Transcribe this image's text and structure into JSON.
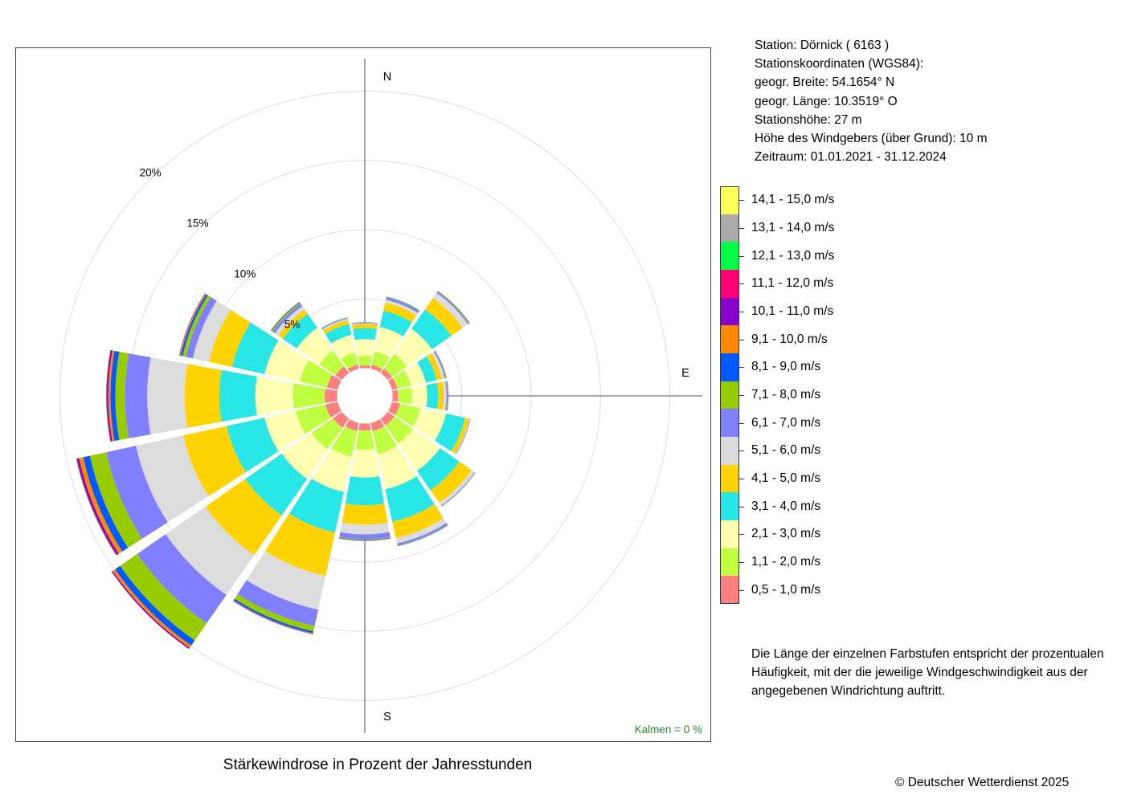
{
  "header": {
    "station": "Station:  Dörnick  ( 6163 )",
    "coords_title": "Stationskoordinaten (WGS84):",
    "lat": "geogr. Breite: 54.1654° N",
    "lon": "geogr. Länge: 10.3519° O",
    "elevation": "Stationshöhe: 27 m",
    "anemometer": "Höhe des Windgebers (über Grund): 10 m",
    "period": "Zeitraum: 01.01.2021 - 31.12.2024"
  },
  "description": "Die Länge der einzelnen Farbstufen entspricht der prozentualen Häufigkeit, mit der die jeweilige Windgeschwindigkeit aus der angegebenen Windrichtung auftritt.",
  "copyright": "© Deutscher Wetterdienst  2025",
  "chart_data": {
    "type": "wind_rose",
    "title": "Stärkewindrose in Prozent der Jahresstunden",
    "calm_label": "Kalmen  =  0 %",
    "directions": [
      "N",
      "NNE",
      "NE",
      "ENE",
      "E",
      "ESE",
      "SE",
      "SSE",
      "S",
      "SSW",
      "SW",
      "WSW",
      "W",
      "WNW",
      "NW",
      "NNW"
    ],
    "compass_labels": [
      "N",
      "E",
      "S"
    ],
    "radial_ticks": [
      5,
      10,
      15,
      20
    ],
    "radial_tick_labels": [
      "5%",
      "10%",
      "15%",
      "20%"
    ],
    "radial_max": 22,
    "calm_offset": 2,
    "classes": [
      {
        "label": "0,5 - 1,0 m/s",
        "color": "#ff7f7f"
      },
      {
        "label": "1,1 - 2,0 m/s",
        "color": "#bfff3f"
      },
      {
        "label": "2,1 - 3,0 m/s",
        "color": "#ffffb2"
      },
      {
        "label": "3,1 - 4,0 m/s",
        "color": "#28e6e6"
      },
      {
        "label": "4,1 - 5,0 m/s",
        "color": "#ffd200"
      },
      {
        "label": "5,1 - 6,0 m/s",
        "color": "#dcdcdc"
      },
      {
        "label": "6,1 - 7,0 m/s",
        "color": "#7f7fff"
      },
      {
        "label": "7,1 - 8,0 m/s",
        "color": "#99cc00"
      },
      {
        "label": "8,1 - 9,0 m/s",
        "color": "#005aff"
      },
      {
        "label": "9,1 - 10,0 m/s",
        "color": "#ff8800"
      },
      {
        "label": "10,1 - 11,0 m/s",
        "color": "#8800cc"
      },
      {
        "label": "11,1 - 12,0 m/s",
        "color": "#ff0077"
      },
      {
        "label": "12,1 - 13,0 m/s",
        "color": "#00ff44"
      },
      {
        "label": "13,1 - 14,0 m/s",
        "color": "#aaaaaa"
      },
      {
        "label": "14,1 - 15,0 m/s",
        "color": "#ffff55"
      }
    ],
    "values": [
      [
        0.2,
        0.7,
        1.2,
        0.8,
        0.3,
        0.05,
        0.05,
        0.02,
        0.01,
        0,
        0,
        0,
        0,
        0,
        0
      ],
      [
        0.3,
        1.0,
        1.8,
        1.2,
        0.6,
        0.2,
        0.15,
        0.05,
        0.03,
        0,
        0,
        0,
        0,
        0,
        0
      ],
      [
        0.4,
        1.3,
        2.2,
        1.7,
        1.0,
        0.45,
        0.08,
        0.05,
        0.03,
        0.02,
        0,
        0,
        0,
        0,
        0
      ],
      [
        0.4,
        1.0,
        1.1,
        0.8,
        0.4,
        0.2,
        0.08,
        0.04,
        0.02,
        0.01,
        0,
        0,
        0,
        0,
        0
      ],
      [
        0.4,
        1.0,
        1.1,
        0.8,
        0.4,
        0.2,
        0.08,
        0.04,
        0.02,
        0.01,
        0,
        0,
        0,
        0,
        0
      ],
      [
        0.6,
        1.5,
        1.9,
        1.4,
        0.3,
        0.05,
        0.03,
        0.02,
        0.01,
        0,
        0,
        0,
        0,
        0,
        0
      ],
      [
        0.6,
        1.6,
        2.4,
        1.7,
        1.1,
        0.25,
        0.05,
        0.02,
        0.01,
        0,
        0,
        0,
        0,
        0,
        0
      ],
      [
        0.6,
        1.7,
        2.6,
        2.4,
        1.2,
        0.4,
        0.15,
        0.04,
        0.02,
        0,
        0,
        0,
        0,
        0,
        0
      ],
      [
        0.5,
        1.4,
        2.0,
        2.0,
        1.4,
        0.7,
        0.35,
        0.05,
        0.05,
        0.03,
        0,
        0,
        0,
        0,
        0
      ],
      [
        0.6,
        1.9,
        2.6,
        3.0,
        3.2,
        2.5,
        1.2,
        0.4,
        0.15,
        0.05,
        0.02,
        0,
        0,
        0,
        0
      ],
      [
        0.8,
        1.9,
        2.6,
        3.2,
        3.5,
        3.5,
        2.5,
        1.5,
        0.45,
        0.2,
        0.1,
        0,
        0,
        0,
        0
      ],
      [
        0.9,
        2.2,
        2.3,
        2.8,
        3.2,
        3.5,
        2.2,
        1.2,
        0.5,
        0.3,
        0.15,
        0.05,
        0.03,
        0,
        0
      ],
      [
        0.9,
        2.3,
        2.7,
        2.6,
        2.5,
        2.7,
        1.6,
        0.7,
        0.35,
        0.15,
        0.1,
        0.05,
        0.02,
        0,
        0
      ],
      [
        0.8,
        2.0,
        2.6,
        2.4,
        1.7,
        1.2,
        0.5,
        0.25,
        0.15,
        0.08,
        0.03,
        0,
        0,
        0,
        0
      ],
      [
        0.6,
        1.4,
        2.0,
        1.2,
        0.4,
        0.3,
        0.2,
        0.1,
        0.05,
        0.02,
        0,
        0,
        0,
        0,
        0
      ],
      [
        0.3,
        0.9,
        1.3,
        0.8,
        0.3,
        0.1,
        0.05,
        0.03,
        0.02,
        0,
        0,
        0,
        0,
        0,
        0
      ]
    ]
  }
}
